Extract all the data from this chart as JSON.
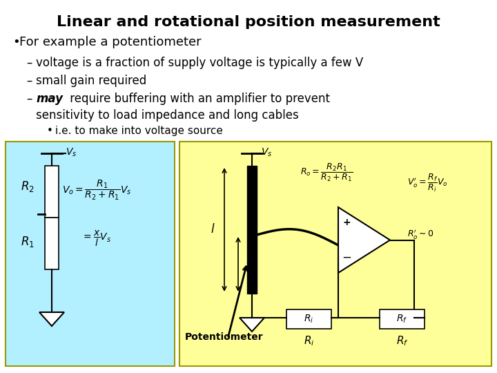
{
  "title": "Linear and rotational position measurement",
  "bullet1": "For example a potentiometer",
  "sub1": "voltage is a fraction of supply voltage is typically a few V",
  "sub2": "small gain required",
  "sub3_rest": " require buffering with an amplifier to prevent",
  "sub3_line2": "sensitivity to load impedance and long cables",
  "sub4": "i.e. to make into voltage source",
  "bg_color": "#ffffff",
  "left_box_color": "#b3f0ff",
  "right_box_color": "#ffff99",
  "border_color": "#999900",
  "text_color": "#000000"
}
